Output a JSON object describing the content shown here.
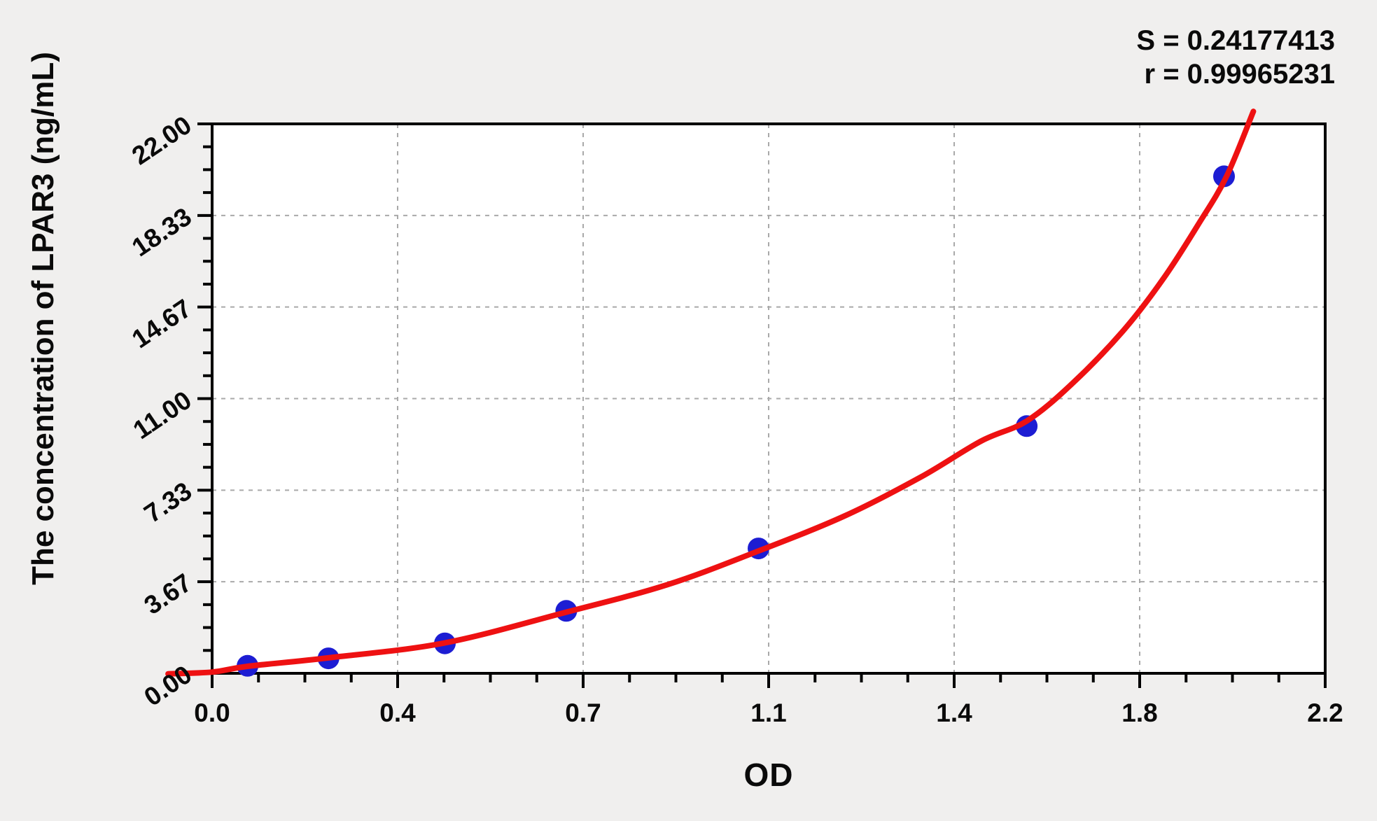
{
  "stats": {
    "s_line": "S = 0.24177413",
    "r_line": "r = 0.99965231"
  },
  "colors": {
    "background": "#f0efee",
    "plot_background": "#ffffff",
    "frame": "#000000",
    "gridline": "#a9a9a9",
    "point": "#1d1dd3",
    "curve": "#ee1112",
    "text": "#0a0a0a"
  },
  "chart_data": {
    "type": "scatter",
    "title": "",
    "xlabel": "OD",
    "ylabel": "The concentration of LPAR3 (ng/mL)",
    "xlim": [
      0,
      2.2
    ],
    "ylim": [
      0,
      22
    ],
    "x_tick_labels": [
      "0.0",
      "0.4",
      "0.7",
      "1.1",
      "1.4",
      "1.8",
      "2.2"
    ],
    "y_tick_labels": [
      "0.00",
      "3.67",
      "7.33",
      "11.00",
      "14.67",
      "18.33",
      "22.00"
    ],
    "minor_divisions_per_major": 4,
    "grid": "dashed gridlines at major ticks, both axes",
    "legend_position": "none",
    "annotations": [
      "S = 0.24177413",
      "r = 0.99965231"
    ],
    "series": [
      {
        "name": "standard points",
        "type": "scatter",
        "color": "#1d1dd3",
        "x": [
          0.07,
          0.23,
          0.46,
          0.7,
          1.08,
          1.61,
          2.0
        ],
        "y": [
          0.3,
          0.6,
          1.2,
          2.5,
          5.0,
          9.9,
          19.9
        ]
      },
      {
        "name": "fitted curve",
        "type": "line",
        "color": "#ee1112",
        "points": [
          [
            -0.087,
            -0.02
          ],
          [
            0.0,
            0.05
          ],
          [
            0.07,
            0.28
          ],
          [
            0.23,
            0.62
          ],
          [
            0.46,
            1.22
          ],
          [
            0.7,
            2.45
          ],
          [
            0.9,
            3.55
          ],
          [
            1.08,
            4.9
          ],
          [
            1.25,
            6.3
          ],
          [
            1.4,
            7.85
          ],
          [
            1.52,
            9.3
          ],
          [
            1.61,
            10.1
          ],
          [
            1.7,
            11.6
          ],
          [
            1.8,
            13.7
          ],
          [
            1.88,
            15.8
          ],
          [
            1.95,
            18.0
          ],
          [
            2.005,
            19.9
          ],
          [
            2.058,
            22.5
          ]
        ]
      }
    ]
  }
}
